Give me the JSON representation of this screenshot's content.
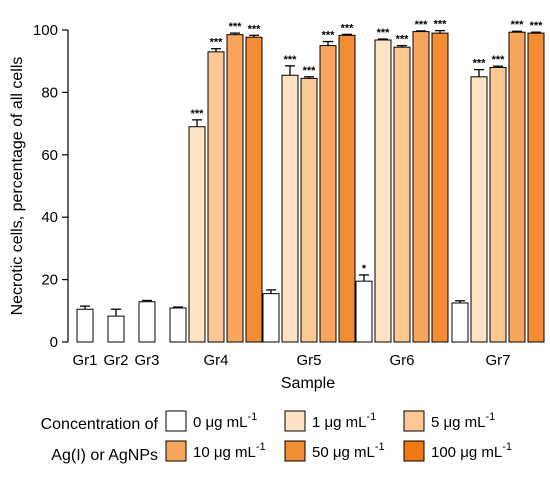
{
  "chart_data": {
    "type": "bar",
    "xlabel": "Sample",
    "ylabel": "Necrotic cells, percentage of all cells",
    "ylim": [
      0,
      100
    ],
    "yticks": [
      0,
      20,
      40,
      60,
      80,
      100
    ],
    "grid": false,
    "colors": [
      "#ffffff",
      "#fde3c4",
      "#fbc894",
      "#f7a65c",
      "#f38d34",
      "#ef7a12"
    ],
    "groups": [
      {
        "label": "Gr1",
        "bars": [
          {
            "series": 0,
            "value": 10.5,
            "error": 1.0,
            "sig": ""
          }
        ]
      },
      {
        "label": "Gr2",
        "bars": [
          {
            "series": 0,
            "value": 8.3,
            "error": 2.2,
            "sig": ""
          }
        ]
      },
      {
        "label": "Gr3",
        "bars": [
          {
            "series": 0,
            "value": 12.9,
            "error": 0.4,
            "sig": ""
          }
        ]
      },
      {
        "label": "Gr4",
        "bars": [
          {
            "series": 0,
            "value": 10.9,
            "error": 0.3,
            "sig": ""
          },
          {
            "series": 1,
            "value": 69.0,
            "error": 2.2,
            "sig": "***"
          },
          {
            "series": 2,
            "value": 93.0,
            "error": 1.0,
            "sig": "***"
          },
          {
            "series": 3,
            "value": 98.5,
            "error": 0.5,
            "sig": "***"
          },
          {
            "series": 4,
            "value": 97.7,
            "error": 0.6,
            "sig": "***"
          }
        ]
      },
      {
        "label": "Gr5",
        "bars": [
          {
            "series": 0,
            "value": 15.5,
            "error": 1.2,
            "sig": ""
          },
          {
            "series": 1,
            "value": 85.5,
            "error": 3.0,
            "sig": "***"
          },
          {
            "series": 2,
            "value": 84.5,
            "error": 0.5,
            "sig": "***"
          },
          {
            "series": 3,
            "value": 95.0,
            "error": 1.3,
            "sig": "***"
          },
          {
            "series": 4,
            "value": 98.3,
            "error": 0.3,
            "sig": "***"
          }
        ]
      },
      {
        "label": "Gr6",
        "bars": [
          {
            "series": 0,
            "value": 19.5,
            "error": 2.0,
            "sig": "*"
          },
          {
            "series": 1,
            "value": 96.8,
            "error": 0.3,
            "sig": "***"
          },
          {
            "series": 2,
            "value": 94.5,
            "error": 0.5,
            "sig": "***"
          },
          {
            "series": 3,
            "value": 99.5,
            "error": 0.2,
            "sig": "***"
          },
          {
            "series": 4,
            "value": 99.0,
            "error": 0.8,
            "sig": "***"
          }
        ]
      },
      {
        "label": "Gr7",
        "bars": [
          {
            "series": 0,
            "value": 12.5,
            "error": 0.7,
            "sig": ""
          },
          {
            "series": 1,
            "value": 85.0,
            "error": 2.3,
            "sig": "***"
          },
          {
            "series": 2,
            "value": 88.0,
            "error": 0.4,
            "sig": "***"
          },
          {
            "series": 3,
            "value": 99.3,
            "error": 0.3,
            "sig": "***"
          },
          {
            "series": 4,
            "value": 99.0,
            "error": 0.3,
            "sig": "***"
          }
        ]
      }
    ],
    "legend": {
      "title_line1": "Concentration of",
      "title_line2": "Ag(I) or AgNPs",
      "entries": [
        {
          "num": "0",
          "unit": "μg mL",
          "sup": "-1"
        },
        {
          "num": "1",
          "unit": "μg mL",
          "sup": "-1"
        },
        {
          "num": "5",
          "unit": "μg mL",
          "sup": "-1"
        },
        {
          "num": "10",
          "unit": "μg mL",
          "sup": "-1"
        },
        {
          "num": "50",
          "unit": "μg mL",
          "sup": "-1"
        },
        {
          "num": "100",
          "unit": "μg mL",
          "sup": "-1"
        }
      ]
    }
  }
}
